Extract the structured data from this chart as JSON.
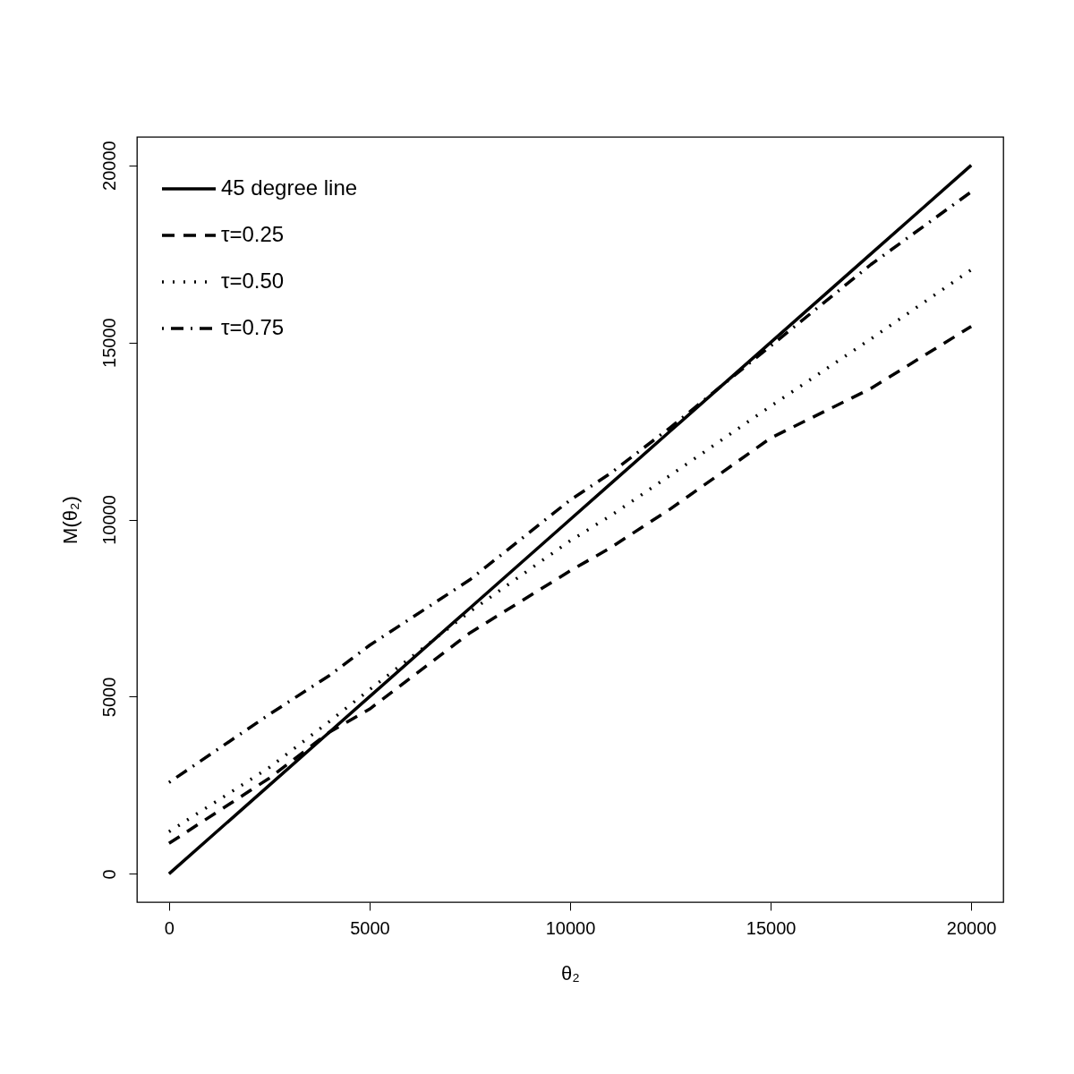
{
  "chart_data": {
    "type": "line",
    "xlabel": "θ₂",
    "ylabel": "M(θ₂)",
    "xlim": [
      -800,
      20800
    ],
    "ylim": [
      -800,
      20800
    ],
    "xticks": [
      0,
      5000,
      10000,
      15000,
      20000
    ],
    "yticks": [
      0,
      5000,
      10000,
      15000,
      20000
    ],
    "grid": false,
    "legend": "top left",
    "x": [
      0,
      2500,
      4000,
      5000,
      7500,
      10000,
      11000,
      12500,
      15000,
      17500,
      20000
    ],
    "series": [
      {
        "name": "45 degree line",
        "color": "#000000",
        "line_style": "solid",
        "values": [
          0,
          2500,
          4000,
          5000,
          7500,
          10000,
          11000,
          12500,
          15000,
          17500,
          20000
        ]
      },
      {
        "name": "τ=0.25",
        "color": "#000000",
        "line_style": "dashed",
        "values": [
          860,
          2700,
          4000,
          4650,
          6800,
          8550,
          9200,
          10300,
          12300,
          13700,
          15450
        ]
      },
      {
        "name": "τ=0.50",
        "color": "#000000",
        "line_style": "dotted",
        "values": [
          1190,
          3000,
          4300,
          5200,
          7400,
          9400,
          10100,
          11250,
          13200,
          15100,
          17050
        ]
      },
      {
        "name": "τ=0.75",
        "color": "#000000",
        "line_style": "dashdot",
        "values": [
          2580,
          4500,
          5600,
          6450,
          8300,
          10550,
          11300,
          12600,
          14900,
          17200,
          19250
        ]
      }
    ]
  }
}
